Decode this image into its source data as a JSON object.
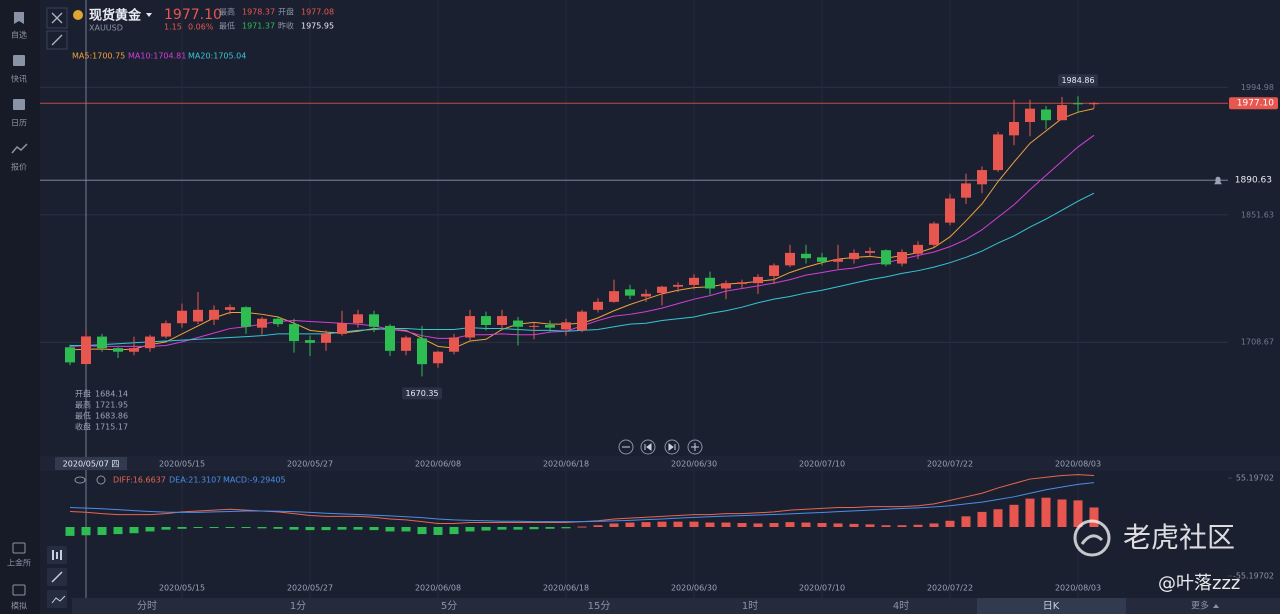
{
  "sidebar": {
    "items": [
      "自选",
      "快讯",
      "日历",
      "报价"
    ],
    "bottom_items": [
      "上金所",
      "模拟"
    ]
  },
  "header": {
    "name": "现货黄金",
    "symbol": "XAUUSD",
    "price": "1977.10",
    "change": "1.15",
    "change_pct": "0.06%",
    "stat_labels": [
      "最高",
      "开盘",
      "最低",
      "昨收"
    ]
  },
  "chart_data": [
    {
      "type": "candlestick",
      "categories": [
        null,
        null,
        null,
        null,
        null,
        null,
        null,
        "2020/05/15",
        null,
        null,
        null,
        null,
        null,
        null,
        null,
        "2020/05/27",
        null,
        null,
        null,
        null,
        null,
        null,
        null,
        "2020/06/08",
        null,
        null,
        null,
        null,
        null,
        null,
        null,
        "2020/06/18",
        null,
        null,
        null,
        null,
        null,
        null,
        null,
        "2020/06/30",
        null,
        null,
        null,
        null,
        null,
        null,
        null,
        "2020/07/10",
        null,
        null,
        null,
        null,
        null,
        null,
        null,
        "2020/07/22",
        null,
        null,
        null,
        null,
        null,
        null,
        null,
        "2020/08/03",
        null
      ],
      "open": [
        1703,
        1684.14,
        1715,
        1702,
        1698,
        1702,
        1715,
        1730,
        1732,
        1734,
        1745,
        1748,
        1725,
        1735,
        1729,
        1711,
        1708,
        1718,
        1730,
        1740,
        1727,
        1699,
        1713,
        1685,
        1698,
        1714,
        1738,
        1728,
        1733,
        1726,
        1728,
        1723,
        1722,
        1745,
        1754,
        1768,
        1760,
        1764,
        1771,
        1773,
        1781,
        1769,
        1774,
        1775,
        1783,
        1795,
        1808,
        1804,
        1799,
        1802,
        1809,
        1812,
        1797,
        1808,
        1818,
        1843,
        1871,
        1886,
        1902,
        1941,
        1956,
        1970,
        1958,
        1977,
        1977.08
      ],
      "high": [
        1706,
        1721.95,
        1718,
        1703,
        1715,
        1717,
        1733,
        1752,
        1765,
        1750,
        1751,
        1749,
        1737,
        1738,
        1735,
        1716,
        1722,
        1744,
        1745,
        1744,
        1729,
        1716,
        1727,
        1699,
        1718,
        1745,
        1743,
        1745,
        1737,
        1731,
        1733,
        1735,
        1745,
        1758,
        1779,
        1773,
        1768,
        1772,
        1776,
        1785,
        1788,
        1778,
        1779,
        1785,
        1797,
        1818,
        1818,
        1809,
        1818,
        1813,
        1815,
        1813,
        1813,
        1822,
        1844,
        1875,
        1898,
        1906,
        1945,
        1981,
        1981,
        1974,
        1984,
        1984.86,
        1978.37
      ],
      "low": [
        1683,
        1683.86,
        1698,
        1691,
        1694,
        1698,
        1713,
        1725,
        1729,
        1728,
        1740,
        1718,
        1717,
        1726,
        1697,
        1693,
        1699,
        1716,
        1725,
        1720,
        1693,
        1694,
        1670.35,
        1680,
        1695,
        1711,
        1722,
        1722,
        1705,
        1712,
        1720,
        1716,
        1720,
        1742,
        1753,
        1757,
        1754,
        1750,
        1765,
        1768,
        1762,
        1757,
        1769,
        1763,
        1774,
        1793,
        1797,
        1795,
        1791,
        1797,
        1804,
        1794,
        1794,
        1802,
        1815,
        1840,
        1864,
        1876,
        1900,
        1930,
        1940,
        1948,
        1958,
        1966,
        1971.37
      ],
      "close": [
        1686,
        1715.17,
        1702,
        1698,
        1702,
        1715,
        1730,
        1744,
        1745,
        1745,
        1748,
        1726,
        1735,
        1729,
        1710,
        1708,
        1718,
        1730,
        1740,
        1726,
        1699,
        1714,
        1684,
        1698,
        1714,
        1738,
        1728,
        1738,
        1726,
        1727,
        1725,
        1731,
        1743,
        1754,
        1766,
        1761,
        1763,
        1771,
        1773,
        1781,
        1769,
        1775,
        1776,
        1782,
        1795,
        1809,
        1803,
        1799,
        1802,
        1809,
        1811,
        1796,
        1810,
        1818,
        1842,
        1870,
        1887,
        1902,
        1942,
        1956,
        1971,
        1958,
        1975,
        1975.95,
        1977.1
      ],
      "up_color": "#e8574f",
      "down_color": "#2ebd52",
      "ylim": [
        1582,
        2093
      ],
      "yticks": [
        1708.67,
        1851.63,
        1994.98
      ],
      "grid": true,
      "ma": [
        {
          "name": "MA5:1700.75",
          "color": "#f0a13a",
          "values": [
            1700,
            1700.75,
            1701,
            1700,
            1701,
            1706,
            1709,
            1718,
            1727,
            1736,
            1742,
            1742,
            1740,
            1737,
            1730,
            1722,
            1720,
            1719,
            1721,
            1724,
            1723,
            1722,
            1713,
            1704,
            1702,
            1710,
            1712,
            1723,
            1729,
            1731,
            1729,
            1729,
            1730,
            1736,
            1744,
            1751,
            1757,
            1763,
            1767,
            1770,
            1771,
            1774,
            1775,
            1777,
            1779,
            1787,
            1793,
            1798,
            1802,
            1804,
            1805,
            1803,
            1806,
            1809,
            1815,
            1827,
            1845,
            1864,
            1889,
            1911,
            1932,
            1946,
            1960,
            1967,
            1971
          ]
        },
        {
          "name": "MA10:1704.81",
          "color": "#d23fd6",
          "values": [
            1704,
            1704.81,
            1704,
            1704,
            1704,
            1704,
            1705,
            1709,
            1714,
            1719,
            1724,
            1726,
            1729,
            1732,
            1733,
            1732,
            1731,
            1730,
            1729,
            1727,
            1723,
            1721,
            1716,
            1713,
            1713,
            1717,
            1717,
            1718,
            1717,
            1717,
            1720,
            1721,
            1727,
            1733,
            1738,
            1740,
            1743,
            1747,
            1752,
            1757,
            1761,
            1766,
            1769,
            1772,
            1775,
            1779,
            1784,
            1787,
            1790,
            1792,
            1796,
            1798,
            1802,
            1806,
            1810,
            1816,
            1824,
            1835,
            1849,
            1863,
            1880,
            1896,
            1912,
            1928,
            1941
          ]
        },
        {
          "name": "MA20:1705.04",
          "color": "#36c6d3",
          "values": [
            1705,
            1705.04,
            1706,
            1707,
            1708,
            1709,
            1710,
            1711,
            1712,
            1713,
            1714,
            1715,
            1716,
            1718,
            1718,
            1718,
            1718,
            1720,
            1722,
            1723,
            1724,
            1724,
            1723,
            1723,
            1723,
            1725,
            1724,
            1724,
            1723,
            1722,
            1722,
            1721,
            1722,
            1723,
            1726,
            1729,
            1730,
            1733,
            1735,
            1737,
            1741,
            1744,
            1748,
            1753,
            1757,
            1760,
            1764,
            1767,
            1771,
            1775,
            1779,
            1782,
            1786,
            1789,
            1793,
            1798,
            1804,
            1811,
            1820,
            1828,
            1838,
            1847,
            1857,
            1867,
            1876
          ]
        }
      ],
      "current_price": {
        "value": 1977.1,
        "label": "1977.10"
      },
      "crosshair": {
        "value": 1890.63,
        "date": "2020/05/07 四"
      },
      "ohlc_labels": [
        "开盘",
        "最高",
        "最低",
        "收盘"
      ]
    },
    {
      "type": "macd",
      "hist_name": "MACD:-9.29405",
      "values": [
        -10,
        -9.29405,
        -9,
        -8,
        -7,
        -5,
        -3,
        -2,
        -1,
        -0.5,
        -0.5,
        -1,
        -1.5,
        -2,
        -3,
        -3.5,
        -3.5,
        -3,
        -3,
        -3.5,
        -5,
        -5,
        -8,
        -9,
        -8,
        -5,
        -4,
        -3,
        -3,
        -2.5,
        -2,
        -1.5,
        0.5,
        2,
        4,
        5,
        5.5,
        6,
        6,
        6,
        5,
        5,
        4.5,
        4,
        4.5,
        5.5,
        5,
        4.5,
        4,
        3.5,
        3,
        2,
        2,
        2.5,
        4,
        7,
        12,
        17,
        20,
        25,
        32,
        33,
        31,
        30,
        22
      ],
      "up_color": "#e8574f",
      "down_color": "#2ebd52",
      "hist_color": "#4a8ee8",
      "series": [
        {
          "name": "DIFF:16.6637",
          "color": "#e8664f",
          "values": [
            17.5,
            16.6637,
            15,
            14,
            14,
            14,
            15,
            17,
            18,
            19,
            20,
            19,
            18,
            17,
            15,
            13,
            12,
            12,
            12,
            11,
            9,
            8,
            6,
            4,
            4,
            5,
            5,
            5,
            5,
            5,
            5,
            5,
            6,
            7,
            9,
            10,
            11,
            12,
            13,
            14,
            14,
            15,
            15,
            16,
            17,
            19,
            20,
            21,
            22,
            22,
            23,
            23,
            23,
            24,
            26,
            30,
            34,
            38,
            44,
            49,
            54,
            56,
            58,
            59,
            58
          ]
        },
        {
          "name": "DEA:21.3107",
          "color": "#4a8ee8",
          "values": [
            22,
            21.3107,
            20.5,
            19.6,
            18.5,
            17.5,
            16.8,
            16.5,
            16.5,
            17,
            17.5,
            18,
            18,
            17.8,
            17.3,
            16.5,
            15.5,
            14.8,
            14.1,
            13.3,
            12.5,
            11.5,
            10.5,
            9,
            8,
            7.5,
            7,
            6.5,
            6.5,
            6,
            6,
            6,
            6,
            6.3,
            6.9,
            7.5,
            8.3,
            9,
            10,
            10.8,
            11.5,
            12.2,
            12.8,
            13.5,
            14.1,
            14.8,
            15.6,
            16.4,
            17.3,
            18.1,
            19,
            19.9,
            20.8,
            21.6,
            22.6,
            24,
            26,
            28,
            31,
            34,
            38,
            42,
            45,
            48,
            50
          ]
        }
      ],
      "ylim": [
        -55.19702,
        55.19702
      ],
      "yticks": [
        -55.19702,
        55.19702
      ]
    }
  ],
  "timeframes": [
    "分时",
    "1分",
    "5分",
    "15分",
    "1时",
    "4时",
    "日K",
    "更多"
  ],
  "watermark": {
    "brand": "老虎社区",
    "user": "@叶落zzz"
  }
}
